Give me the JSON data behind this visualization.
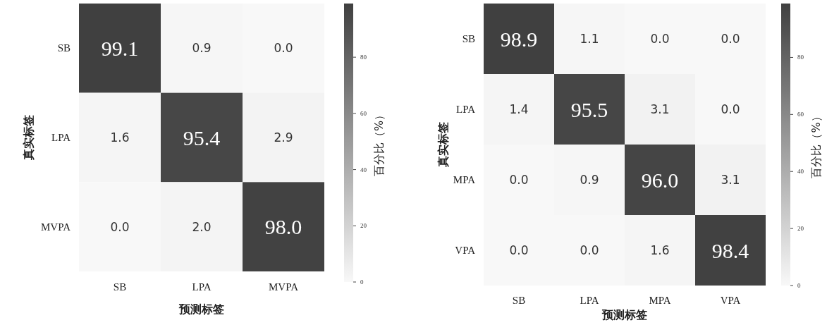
{
  "chart_data": [
    {
      "type": "heatmap",
      "xlabel": "预测标签",
      "ylabel": "真实标签",
      "clabel": "百分比（%）",
      "categories": [
        "SB",
        "LPA",
        "MVPA"
      ],
      "y_categories": [
        "SB",
        "LPA",
        "MVPA"
      ],
      "cells": [
        [
          99.1,
          0.9,
          0.0
        ],
        [
          1.6,
          95.4,
          2.9
        ],
        [
          0.0,
          2.0,
          98.0
        ]
      ],
      "cell_labels": [
        [
          "99.1",
          "0.9",
          "0.0"
        ],
        [
          "1.6",
          "95.4",
          "2.9"
        ],
        [
          "0.0",
          "2.0",
          "98.0"
        ]
      ],
      "clim": [
        0,
        99.1
      ],
      "cticks": [
        0,
        20,
        40,
        60,
        80
      ]
    },
    {
      "type": "heatmap",
      "xlabel": "预测标签",
      "ylabel": "真实标签",
      "clabel": "百分比（%）",
      "categories": [
        "SB",
        "LPA",
        "MPA",
        "VPA"
      ],
      "y_categories": [
        "SB",
        "LPA",
        "MPA",
        "VPA"
      ],
      "cells": [
        [
          98.9,
          1.1,
          0.0,
          0.0
        ],
        [
          1.4,
          95.5,
          3.1,
          0.0
        ],
        [
          0.0,
          0.9,
          96.0,
          3.1
        ],
        [
          0.0,
          0.0,
          1.6,
          98.4
        ]
      ],
      "cell_labels": [
        [
          "98.9",
          "1.1",
          "0.0",
          "0.0"
        ],
        [
          "1.4",
          "95.5",
          "3.1",
          "0.0"
        ],
        [
          "0.0",
          "0.9",
          "96.0",
          "3.1"
        ],
        [
          "0.0",
          "0.0",
          "1.6",
          "98.4"
        ]
      ],
      "clim": [
        0,
        98.9
      ],
      "cticks": [
        0,
        20,
        40,
        60,
        80
      ]
    }
  ]
}
